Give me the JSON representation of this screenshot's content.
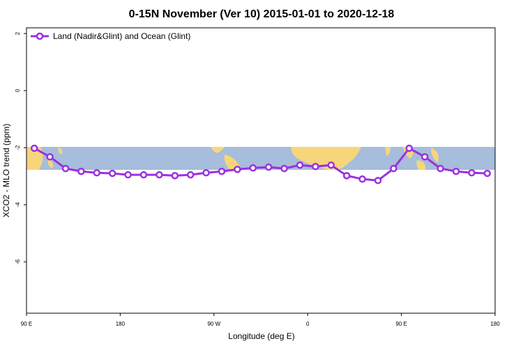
{
  "chart_data": {
    "type": "line",
    "title": "0-15N November (Ver 10)   2015-01-01 to 2020-12-18",
    "x_label": "Longitude (deg E)",
    "y_label": "XCO2 - MLO trend (ppm)",
    "x": [
      97.5,
      112.5,
      127.5,
      142.5,
      157.5,
      172.5,
      187.5,
      202.5,
      217.5,
      232.5,
      247.5,
      262.5,
      277.5,
      292.5,
      307.5,
      322.5,
      337.5,
      352.5,
      367.5,
      382.5,
      397.5,
      412.5,
      427.5,
      442.5,
      457.5,
      472.5,
      487.5,
      502.5,
      517.5,
      532.5
    ],
    "series": [
      {
        "name": "Land (Nadir&Glint) and Ocean (Glint)",
        "color": "#9b30e0",
        "values": [
          -2.02,
          -2.32,
          -2.73,
          -2.83,
          -2.88,
          -2.9,
          -2.95,
          -2.95,
          -2.95,
          -2.98,
          -2.95,
          -2.88,
          -2.83,
          -2.76,
          -2.71,
          -2.68,
          -2.73,
          -2.61,
          -2.66,
          -2.61,
          -2.98,
          -3.1,
          -3.15,
          -2.73,
          -2.02,
          -2.32,
          -2.73,
          -2.83,
          -2.88,
          -2.9
        ]
      }
    ],
    "xlim": [
      90,
      540
    ],
    "xticks": [
      {
        "value": 90,
        "label": "90 E"
      },
      {
        "value": 180,
        "label": "180"
      },
      {
        "value": 270,
        "label": "90 W"
      },
      {
        "value": 360,
        "label": "0"
      },
      {
        "value": 450,
        "label": "90 E"
      },
      {
        "value": 540,
        "label": "180"
      }
    ],
    "ylim": [
      -7.8,
      2.2
    ],
    "yticks": [
      2,
      0,
      -2,
      -4,
      -6
    ],
    "legend": "top-left"
  }
}
